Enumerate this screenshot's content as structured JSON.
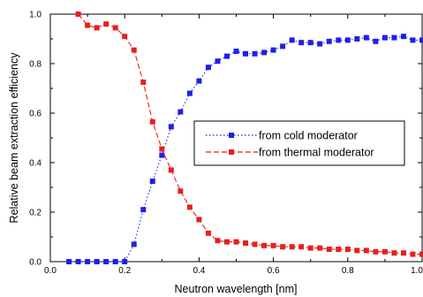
{
  "chart_data": {
    "type": "line",
    "title": "",
    "xlabel": "Neutron wavelength [nm]",
    "ylabel": "Relative beam extraction efficiency",
    "xlim": [
      0.0,
      1.0
    ],
    "ylim": [
      0.0,
      1.0
    ],
    "x_ticks": [
      "0.0",
      "0.2",
      "0.4",
      "0.6",
      "0.8",
      "1.0"
    ],
    "y_ticks": [
      "0.0",
      "0.2",
      "0.4",
      "0.6",
      "0.8",
      "1.0"
    ],
    "grid": false,
    "legend_position": "center-right",
    "series": [
      {
        "name": "from cold moderator",
        "color": "#1f1fe6",
        "line_style": "dotted",
        "marker": "square",
        "x": [
          0.05,
          0.075,
          0.1,
          0.125,
          0.15,
          0.175,
          0.2,
          0.225,
          0.25,
          0.275,
          0.3,
          0.325,
          0.35,
          0.375,
          0.4,
          0.425,
          0.45,
          0.475,
          0.5,
          0.525,
          0.55,
          0.575,
          0.6,
          0.625,
          0.65,
          0.675,
          0.7,
          0.725,
          0.75,
          0.775,
          0.8,
          0.825,
          0.85,
          0.875,
          0.9,
          0.925,
          0.95,
          0.975,
          1.0
        ],
        "y": [
          0.0,
          0.0,
          0.0,
          0.0,
          0.0,
          0.0,
          0.0,
          0.07,
          0.21,
          0.325,
          0.43,
          0.545,
          0.605,
          0.68,
          0.73,
          0.785,
          0.81,
          0.83,
          0.85,
          0.84,
          0.84,
          0.845,
          0.855,
          0.87,
          0.895,
          0.885,
          0.885,
          0.88,
          0.89,
          0.895,
          0.895,
          0.9,
          0.905,
          0.89,
          0.905,
          0.905,
          0.91,
          0.895,
          0.895
        ]
      },
      {
        "name": "from thermal moderator",
        "color": "#e61f1f",
        "line_style": "dashed",
        "marker": "square",
        "x": [
          0.075,
          0.1,
          0.125,
          0.15,
          0.175,
          0.2,
          0.225,
          0.25,
          0.275,
          0.3,
          0.325,
          0.35,
          0.375,
          0.4,
          0.425,
          0.45,
          0.475,
          0.5,
          0.525,
          0.55,
          0.575,
          0.6,
          0.625,
          0.65,
          0.675,
          0.7,
          0.725,
          0.75,
          0.775,
          0.8,
          0.825,
          0.85,
          0.875,
          0.9,
          0.925,
          0.95,
          0.975,
          1.0
        ],
        "y": [
          1.0,
          0.955,
          0.945,
          0.96,
          0.945,
          0.91,
          0.855,
          0.725,
          0.565,
          0.455,
          0.37,
          0.285,
          0.22,
          0.17,
          0.115,
          0.085,
          0.08,
          0.08,
          0.075,
          0.07,
          0.065,
          0.065,
          0.06,
          0.06,
          0.06,
          0.055,
          0.055,
          0.05,
          0.05,
          0.05,
          0.045,
          0.045,
          0.04,
          0.04,
          0.035,
          0.035,
          0.03,
          0.03
        ]
      }
    ]
  }
}
